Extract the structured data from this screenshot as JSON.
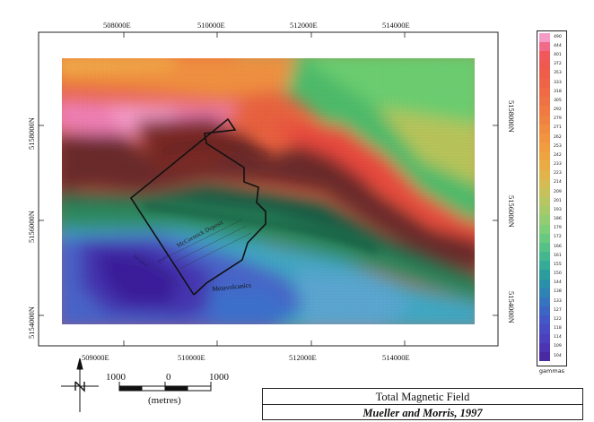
{
  "map": {
    "top_easting_labels": [
      "508000E",
      "510000E",
      "512000E",
      "514000E"
    ],
    "bottom_easting_labels": [
      "509000E",
      "510000E",
      "512000E",
      "514000E"
    ],
    "left_northing_labels": [
      "5158000N",
      "5156000N",
      "5154000N"
    ],
    "right_northing_labels": [
      "5158000N",
      "5156000N",
      "5154000N"
    ],
    "annotations": {
      "deposit_name": "McCormick Deposit",
      "rock_unit": "Metavolcanics",
      "faint_label_1": "Pluton",
      "faint_label_2": "Intrusive"
    }
  },
  "legend": {
    "unit": "gammas",
    "values": [
      "490",
      "444",
      "401",
      "372",
      "353",
      "333",
      "318",
      "305",
      "292",
      "279",
      "271",
      "262",
      "253",
      "242",
      "233",
      "223",
      "214",
      "209",
      "201",
      "193",
      "186",
      "179",
      "172",
      "166",
      "161",
      "155",
      "150",
      "144",
      "138",
      "133",
      "127",
      "122",
      "118",
      "114",
      "109",
      "104"
    ],
    "colors": [
      "#f49bc6",
      "#f26a8a",
      "#f0585c",
      "#ee5a4f",
      "#ef5e4a",
      "#ee6446",
      "#ef6a45",
      "#ef7244",
      "#f07a42",
      "#f08241",
      "#f08b40",
      "#f1933f",
      "#f09c3f",
      "#eea440",
      "#e9ac44",
      "#e0b44a",
      "#d5bb52",
      "#c7c15b",
      "#b7c662",
      "#a6c96a",
      "#93cc72",
      "#7dcd79",
      "#69c980",
      "#56c187",
      "#44b78f",
      "#36ab96",
      "#2c9d9d",
      "#2a8fa8",
      "#2f82b4",
      "#3674bf",
      "#3d65c4",
      "#4358c6",
      "#484bc4",
      "#4b40be",
      "#4c35b2",
      "#4a2aa3"
    ]
  },
  "scale_bar": {
    "labels": [
      "1000",
      "0",
      "1000"
    ],
    "unit": "(metres)"
  },
  "title_block": {
    "title": "Total Magnetic Field",
    "source": "Mueller and Morris, 1997"
  },
  "colors": {
    "low": "#3c2aa0",
    "mid": "#1e7a5a",
    "high": "#e8503a",
    "peak": "#ee86c0",
    "dark_ridge": "#6b2a2a"
  }
}
